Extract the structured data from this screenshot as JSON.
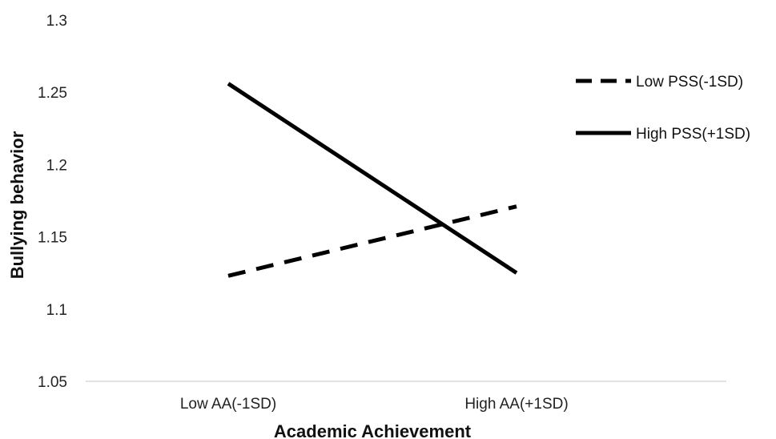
{
  "chart_data": {
    "type": "line",
    "title": "",
    "xlabel": "Academic Achievement",
    "ylabel": "Bullying behavior",
    "categories": [
      "Low AA(-1SD)",
      "High AA(+1SD)"
    ],
    "ylim": [
      1.05,
      1.3
    ],
    "yticks": [
      1.05,
      1.1,
      1.15,
      1.2,
      1.25,
      1.3
    ],
    "ytick_labels": [
      "1.05",
      "1.1",
      "1.15",
      "1.2",
      "1.25",
      "1.3"
    ],
    "grid": false,
    "legend": "right",
    "series": [
      {
        "name": "Low PSS(-1SD)",
        "values": [
          1.123,
          1.171
        ],
        "style": "dashed",
        "color": "#000000"
      },
      {
        "name": "High PSS(+1SD)",
        "values": [
          1.256,
          1.125
        ],
        "style": "solid",
        "color": "#000000"
      }
    ]
  }
}
